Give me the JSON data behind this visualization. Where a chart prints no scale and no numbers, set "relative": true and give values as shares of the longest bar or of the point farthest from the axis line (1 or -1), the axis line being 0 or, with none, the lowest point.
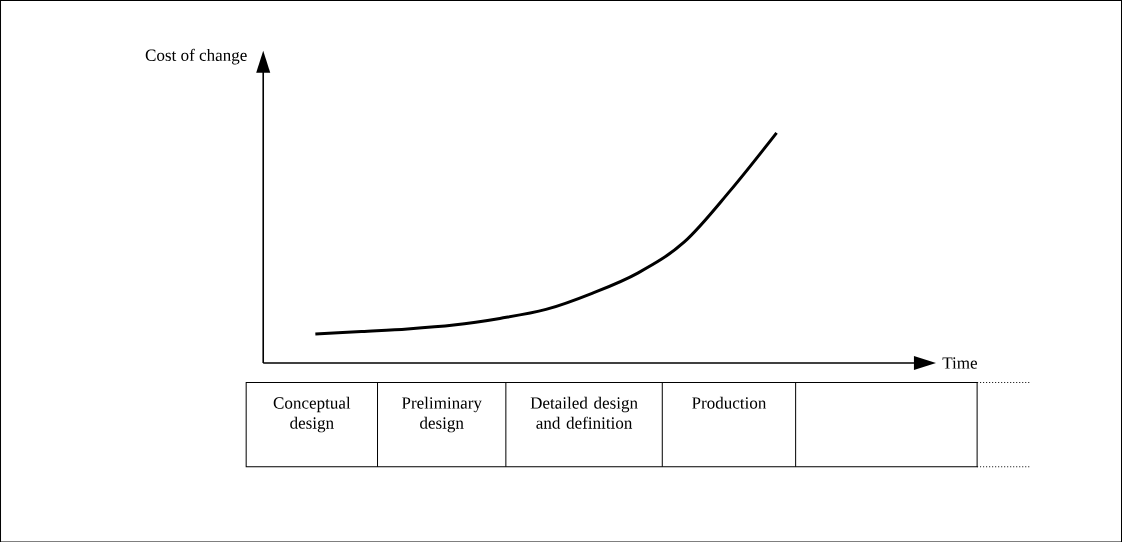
{
  "chart_data": {
    "type": "line",
    "relative": true,
    "ylabel": "Cost of change",
    "categories": [
      null,
      null,
      null,
      null,
      null,
      null,
      null,
      null,
      null,
      null,
      null
    ],
    "series": [
      {
        "color": "#000000",
        "values": [
          0.126,
          0.137,
          0.148,
          0.165,
          0.194,
          0.233,
          0.303,
          0.392,
          0.526,
          0.75,
          1
        ]
      }
    ],
    "marker": "none",
    "line_style": "solid",
    "annotations": [
      "Time",
      "Conceptual design",
      "Preliminary design",
      "Detailed design and definition",
      "Production"
    ]
  }
}
